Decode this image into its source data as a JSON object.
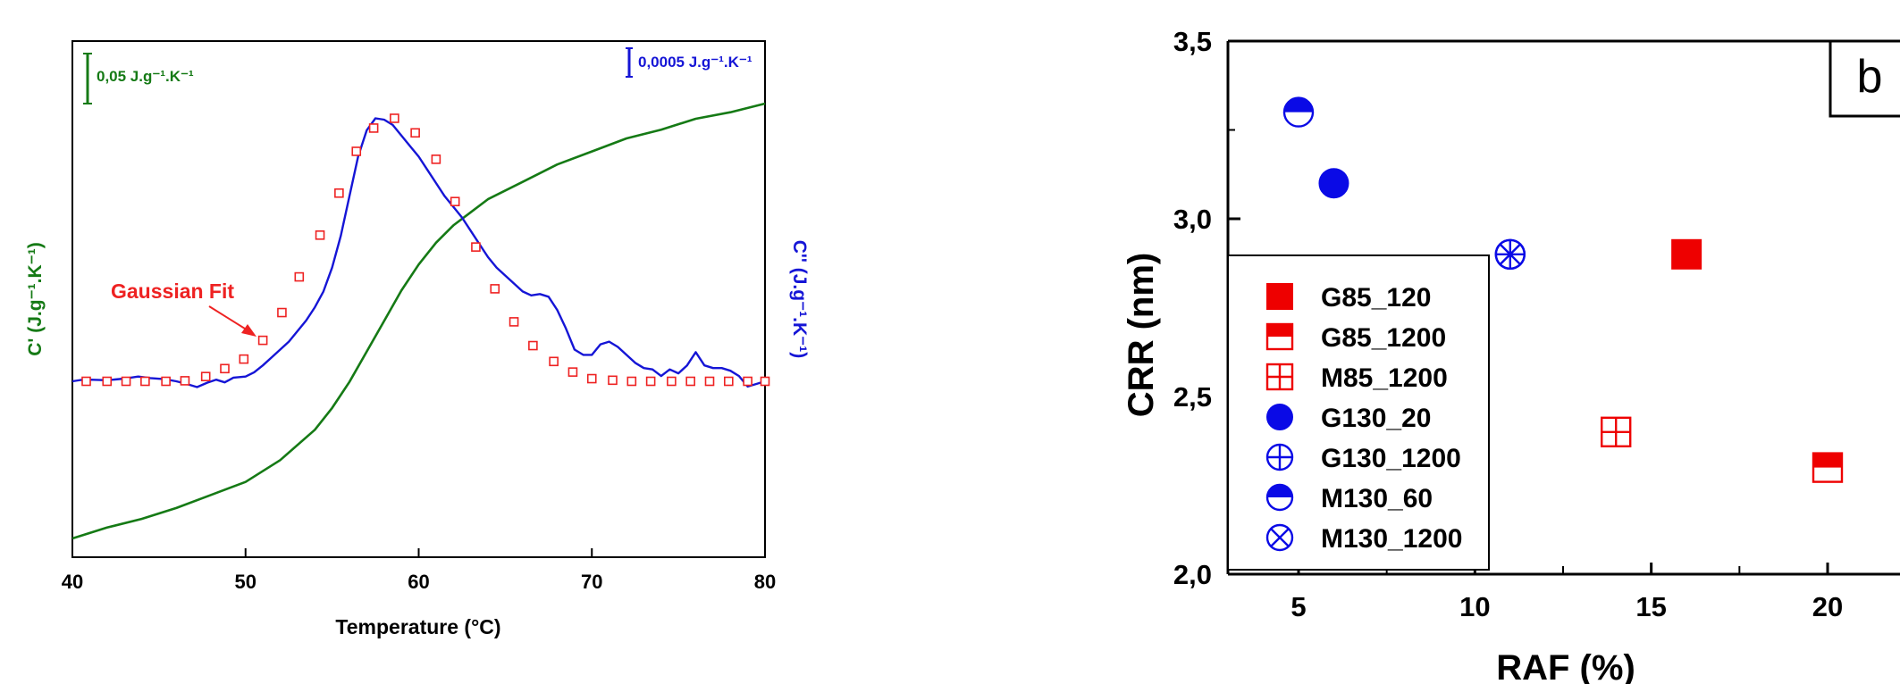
{
  "chart_data": [
    {
      "type": "line",
      "xlabel": "Temperature (°C)",
      "ylabel_left": "C' (J.g⁻¹.K⁻¹)",
      "ylabel_right": "C'' (J.g⁻¹.K⁻¹)",
      "xlim": [
        40,
        80
      ],
      "xticks": [
        "40",
        "50",
        "60",
        "70",
        "80"
      ],
      "scale_bar_left": "0,05 J.g⁻¹.K⁻¹",
      "scale_bar_right": "0,0005 J.g⁻¹.K⁻¹",
      "annotation": "Gaussian Fit",
      "colors": {
        "c_prime": "#157a15",
        "c_double_prime": "#1515d6",
        "gaussian_fit": "#ee2222",
        "annotation": "#ee2222"
      },
      "series": [
        {
          "id": "c_prime",
          "x": [
            40,
            42,
            44,
            46,
            48,
            50,
            52,
            54,
            55,
            56,
            57,
            58,
            59,
            60,
            61,
            62,
            63,
            64,
            66,
            68,
            70,
            72,
            74,
            76,
            78,
            80
          ],
          "y": [
            0.19,
            0.215,
            0.235,
            0.26,
            0.29,
            0.32,
            0.37,
            0.44,
            0.49,
            0.55,
            0.62,
            0.69,
            0.76,
            0.82,
            0.87,
            0.91,
            0.94,
            0.97,
            1.01,
            1.05,
            1.08,
            1.11,
            1.13,
            1.155,
            1.17,
            1.19
          ]
        },
        {
          "id": "c_double_prime",
          "x": [
            40,
            40.5,
            41,
            42,
            43,
            43.8,
            44.5,
            45.3,
            46,
            46.6,
            47.2,
            47.8,
            48.3,
            48.8,
            49.3,
            50,
            50.5,
            51,
            51.5,
            52,
            52.5,
            53,
            53.5,
            54,
            54.5,
            55,
            55.5,
            56,
            56.5,
            57,
            57.5,
            58,
            58.5,
            59,
            59.5,
            60,
            60.5,
            61,
            61.5,
            62,
            62.5,
            63,
            63.5,
            64,
            64.5,
            65,
            65.5,
            66,
            66.5,
            67,
            67.5,
            68,
            68.5,
            69,
            69.5,
            70,
            70.5,
            71,
            71.5,
            72,
            72.5,
            73,
            73.5,
            74,
            74.5,
            75,
            75.5,
            76,
            76.5,
            77,
            77.5,
            78,
            78.5,
            79,
            79.5,
            80
          ],
          "y": [
            0.0,
            0.005,
            0.006,
            0.004,
            0.01,
            0.018,
            0.012,
            0.008,
            0.0,
            -0.01,
            -0.022,
            -0.005,
            0.006,
            -0.004,
            0.014,
            0.018,
            0.034,
            0.06,
            0.09,
            0.12,
            0.15,
            0.19,
            0.23,
            0.28,
            0.34,
            0.43,
            0.55,
            0.7,
            0.85,
            0.95,
            0.995,
            0.99,
            0.97,
            0.93,
            0.89,
            0.85,
            0.8,
            0.75,
            0.7,
            0.66,
            0.62,
            0.57,
            0.52,
            0.47,
            0.43,
            0.4,
            0.37,
            0.34,
            0.325,
            0.33,
            0.32,
            0.27,
            0.2,
            0.12,
            0.1,
            0.1,
            0.14,
            0.15,
            0.13,
            0.1,
            0.07,
            0.05,
            0.045,
            0.02,
            0.045,
            0.03,
            0.06,
            0.11,
            0.06,
            0.05,
            0.05,
            0.04,
            0.02,
            -0.02,
            -0.01,
            0.0
          ]
        },
        {
          "id": "gaussian_fit",
          "x": [
            40.8,
            42,
            43.1,
            44.2,
            45.4,
            46.5,
            47.7,
            48.8,
            49.9,
            51,
            52.1,
            53.1,
            54.3,
            55.4,
            56.4,
            57.4,
            58.6,
            59.8,
            61,
            62.1,
            63.3,
            64.4,
            65.5,
            66.6,
            67.8,
            68.9,
            70,
            71.2,
            72.3,
            73.4,
            74.6,
            75.7,
            76.8,
            77.9,
            79,
            80
          ],
          "y": [
            0.0,
            0.0,
            0.0,
            0.0,
            0.0,
            0.002,
            0.018,
            0.048,
            0.084,
            0.155,
            0.26,
            0.395,
            0.553,
            0.712,
            0.87,
            0.958,
            0.995,
            0.94,
            0.84,
            0.68,
            0.508,
            0.35,
            0.225,
            0.135,
            0.075,
            0.035,
            0.01,
            0.004,
            0.0,
            0.0,
            0.0,
            0.0,
            0.0,
            0.0,
            0.0,
            0.0
          ]
        }
      ]
    },
    {
      "type": "scatter",
      "panel_label": "b",
      "xlabel": "RAF (%)",
      "ylabel": "CRR (nm)",
      "xlim": [
        3,
        21
      ],
      "ylim": [
        2.0,
        3.5
      ],
      "xticks": [
        "5",
        "10",
        "15",
        "20"
      ],
      "yticks": [
        "2,0",
        "2,5",
        "3,0",
        "3,5"
      ],
      "colors": {
        "red": "#ee0000",
        "blue": "#0a0ae6"
      },
      "series": [
        {
          "name": "G85_120",
          "marker": "square-filled",
          "color": "#ee0000",
          "x": [
            16
          ],
          "y": [
            2.9
          ]
        },
        {
          "name": "G85_1200",
          "marker": "square-half",
          "color": "#ee0000",
          "x": [
            20
          ],
          "y": [
            2.3
          ]
        },
        {
          "name": "M85_1200",
          "marker": "square-plus",
          "color": "#ee0000",
          "x": [
            14
          ],
          "y": [
            2.4
          ]
        },
        {
          "name": "G130_20",
          "marker": "circle-filled",
          "color": "#0a0ae6",
          "x": [
            6
          ],
          "y": [
            3.1
          ]
        },
        {
          "name": "G130_1200",
          "marker": "circle-plus",
          "color": "#0a0ae6",
          "x": [
            11
          ],
          "y": [
            2.9
          ]
        },
        {
          "name": "M130_60",
          "marker": "circle-half",
          "color": "#0a0ae6",
          "x": [
            5
          ],
          "y": [
            3.3
          ]
        },
        {
          "name": "M130_1200",
          "marker": "circle-x",
          "color": "#0a0ae6",
          "x": [
            11
          ],
          "y": [
            2.9
          ]
        }
      ]
    }
  ]
}
